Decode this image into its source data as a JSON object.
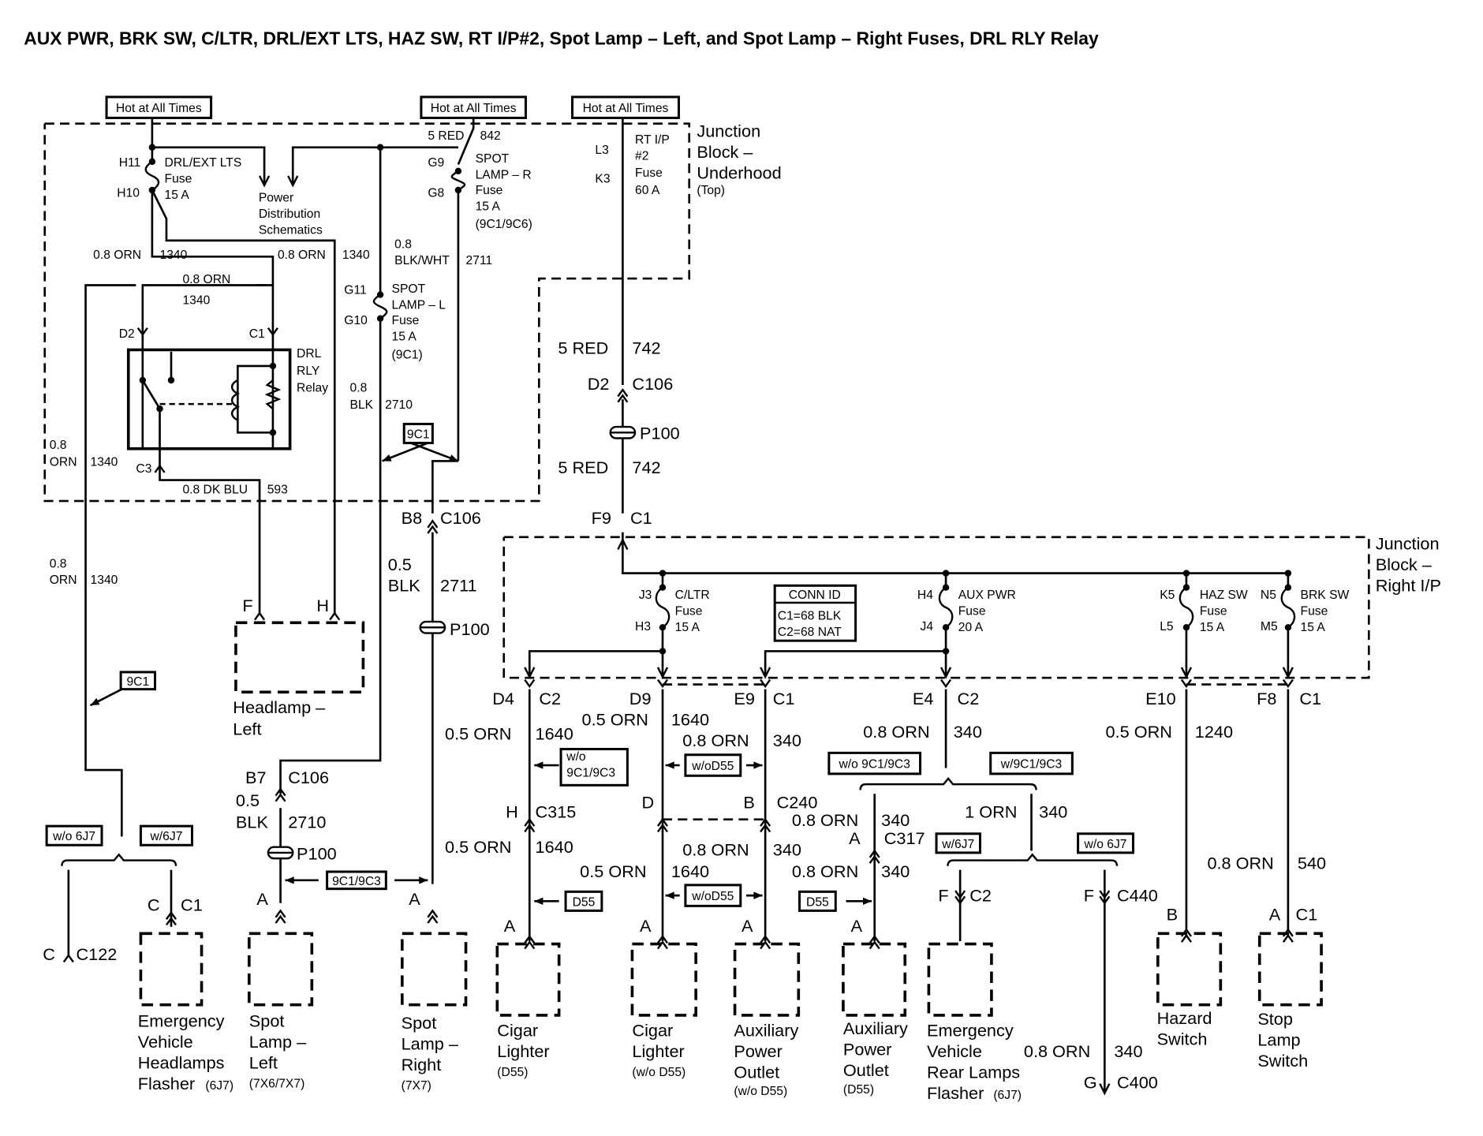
{
  "title": "AUX PWR, BRK SW, C/LTR, DRL/EXT LTS, HAZ SW, RT I/P#2, Spot Lamp – Left, and Spot Lamp – Right Fuses, DRL RLY Relay",
  "colors": {
    "ink": "#000000",
    "background": "#ffffff"
  },
  "tags": {
    "hot1": "Hot at All Times",
    "hot2": "Hot at All Times",
    "hot3": "Hot at All Times",
    "opt_9c1_a": "9C1",
    "opt_9c1_b": "9C1",
    "opt_9c1_9c3": "9C1/9C3",
    "opt_wo6j7_l": "w/o 6J7",
    "opt_w6j7_l": "w/6J7",
    "opt_wo9c1_9c3_cig": "w/o 9C1/9C3",
    "opt_wod55_1": "w/oD55",
    "opt_wod55_2": "w/oD55",
    "opt_d55_1": "D55",
    "opt_d55_2": "D55",
    "opt_wo9c1_9c3_aux": "w/o 9C1/9C3",
    "opt_w9c1_9c3_aux": "w/9C1/9C3",
    "opt_w6j7_r": "w/6J7",
    "opt_wo6j7_r": "w/o 6J7"
  },
  "conn_id": {
    "title": "CONN ID",
    "c1": "C1=68 BLK",
    "c2": "C2=68 NAT"
  },
  "labels": {
    "h11": "H11",
    "h10": "H10",
    "drl_f1": "DRL/EXT LTS",
    "drl_f2": "Fuse",
    "drl_f3": "15 A",
    "pds1": "Power",
    "pds2": "Distribution",
    "pds3": "Schematics",
    "w1a": "0.8 ORN",
    "w1b": "1340",
    "w2a": "0.8 ORN",
    "w2b": "1340",
    "w3a": "0.8 ORN",
    "w3b": "1340",
    "rd2": "D2",
    "rc1": "C1",
    "rly1": "DRL",
    "rly2": "RLY",
    "rly3": "Relay",
    "rc3": "C3",
    "w4a": "0.8",
    "w4b": "ORN",
    "w4c": "1340",
    "w5a": "0.8 DK BLU",
    "w5b": "593",
    "w6a": "0.8",
    "w6b": "ORN",
    "w6c": "1340",
    "w7a": "5 RED",
    "w7b": "842",
    "g9": "G9",
    "g8": "G8",
    "spr1": "SPOT",
    "spr2": "LAMP – R",
    "spr3": "Fuse",
    "spr4": "15 A",
    "spr5": "(9C1/9C6)",
    "w8a": "0.8",
    "w8b": "BLK/WHT",
    "w8c": "2711",
    "g11": "G11",
    "g10": "G10",
    "spl1": "SPOT",
    "spl2": "LAMP – L",
    "spl3": "Fuse",
    "spl4": "15 A",
    "spl5": "(9C1)",
    "w9a": "0.8",
    "w9b": "BLK",
    "w9c": "2710",
    "l3": "L3",
    "k3": "K3",
    "rt1": "RT I/P",
    "rt2": "#2",
    "rt3": "Fuse",
    "rt4": "60 A",
    "jbu1": "Junction",
    "jbu2": "Block –",
    "jbu3": "Underhood",
    "jbu4": "(Top)",
    "w10a": "5 RED",
    "w10b": "742",
    "cd2": "D2",
    "c106a": "C106",
    "p100a": "P100",
    "w11a": "5 RED",
    "w11b": "742",
    "f9": "F9",
    "c1a": "C1",
    "b8": "B8",
    "c106b": "C106",
    "w12a": "0.5",
    "w12b": "BLK",
    "w12c": "2711",
    "p100b": "P100",
    "hf": "F",
    "hh": "H",
    "hl1": "Headlamp –",
    "hl2": "Left",
    "b7": "B7",
    "c106c": "C106",
    "w13a": "0.5",
    "w13b": "BLK",
    "w13c": "2710",
    "p100c": "P100",
    "sla": "A",
    "sra": "A",
    "cc": "C",
    "c122": "C122",
    "ec": "C",
    "ec1": "C1",
    "ev1": "Emergency",
    "ev2": "Vehicle",
    "ev3": "Headlamps",
    "ev4": "Flasher",
    "ev5": "(6J7)",
    "sl1": "Spot",
    "sl2": "Lamp –",
    "sl3": "Left",
    "sl4": "(7X6/7X7)",
    "sr1": "Spot",
    "sr2": "Lamp –",
    "sr3": "Right",
    "sr4": "(7X7)",
    "jbr1": "Junction",
    "jbr2": "Block –",
    "jbr3": "Right I/P",
    "j3": "J3",
    "h3": "H3",
    "cl1": "C/LTR",
    "cl2": "Fuse",
    "cl3": "15 A",
    "h4": "H4",
    "j4": "J4",
    "ap1": "AUX PWR",
    "ap2": "Fuse",
    "ap3": "20 A",
    "k5": "K5",
    "l5": "L5",
    "hz1": "HAZ SW",
    "hz2": "Fuse",
    "hz3": "15 A",
    "n5": "N5",
    "m5": "M5",
    "bk1": "BRK SW",
    "bk2": "Fuse",
    "bk3": "15 A",
    "d4": "D4",
    "c2a": "C2",
    "d9": "D9",
    "e9": "E9",
    "c1b": "C1",
    "e4": "E4",
    "c2b": "C2",
    "e10": "E10",
    "f8": "F8",
    "c1c": "C1",
    "w14a": "0.5 ORN",
    "w14b": "1640",
    "w15a": "0.5 ORN",
    "w15b": "1640",
    "w16a": "0.8 ORN",
    "w16b": "340",
    "w17a": "0.8 ORN",
    "w17b": "340",
    "w18a": "0.5 ORN",
    "w18b": "1240",
    "ch": "H",
    "c315": "C315",
    "cd": "D",
    "cb": "B",
    "c240": "C240",
    "w19a": "0.8 ORN",
    "w19b": "340",
    "w20a": "1 ORN",
    "w20b": "340",
    "ca": "A",
    "c317": "C317",
    "w21a": "0.5 ORN",
    "w21b": "1640",
    "w22a": "0.8 ORN",
    "w22b": "340",
    "w23a": "0.5 ORN",
    "w23b": "1640",
    "w24a": "0.8 ORN",
    "w24b": "340",
    "w25a": "0.8 ORN",
    "w25b": "540",
    "ff1": "F",
    "c2c": "C2",
    "ff2": "F",
    "c440": "C440",
    "a1": "A",
    "a2": "A",
    "a3": "A",
    "a4": "A",
    "hb": "B",
    "sa": "A",
    "sc1": "C1",
    "cg1": "Cigar",
    "cg2": "Lighter",
    "cg3": "(D55)",
    "cw1": "Cigar",
    "cw2": "Lighter",
    "cw3": "(w/o D55)",
    "aw1": "Auxiliary",
    "aw2": "Power",
    "aw3": "Outlet",
    "aw4": "(w/o D55)",
    "ad1": "Auxiliary",
    "ad2": "Power",
    "ad3": "Outlet",
    "ad4": "(D55)",
    "er1": "Emergency",
    "er2": "Vehicle",
    "er3": "Rear Lamps",
    "er4": "Flasher",
    "er5": "(6J7)",
    "w26a": "0.8 ORN",
    "w26b": "340",
    "gg": "G",
    "c400": "C400",
    "hs1": "Hazard",
    "hs2": "Switch",
    "st1": "Stop",
    "st2": "Lamp",
    "st3": "Switch"
  }
}
